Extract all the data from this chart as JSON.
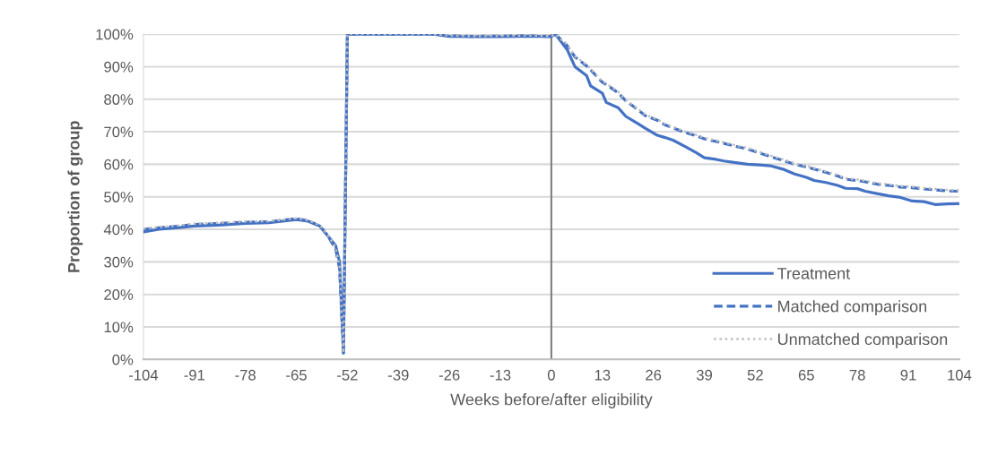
{
  "chart_data": {
    "type": "line",
    "xlabel": "Weeks before/after eligibility",
    "ylabel": "Proportion of group",
    "x": [
      -104,
      -100,
      -95,
      -91,
      -85,
      -78,
      -72,
      -65,
      -62,
      -59,
      -57,
      -55,
      -54,
      -53,
      -52,
      -45,
      -39,
      -30,
      -26,
      -20,
      -13,
      -6,
      0,
      1,
      4,
      6,
      9,
      10,
      13,
      14,
      17,
      19,
      22,
      24,
      27,
      29,
      31,
      34,
      37,
      39,
      42,
      44,
      47,
      50,
      53,
      56,
      59,
      62,
      65,
      67,
      70,
      73,
      75,
      78,
      80,
      83,
      86,
      89,
      92,
      95,
      98,
      101,
      104
    ],
    "series": [
      {
        "name": "Treatment",
        "color": "#4472c4",
        "line_style": "solid",
        "values": [
          39.2,
          40,
          40.5,
          41,
          41.3,
          41.8,
          42,
          43,
          42.5,
          41,
          38,
          35,
          30,
          2,
          100,
          100,
          100,
          100,
          99.3,
          99.2,
          99.2,
          99.4,
          99.2,
          100,
          95.3,
          90,
          87.2,
          84.1,
          81.8,
          79,
          77.4,
          74.7,
          72.5,
          71,
          68.9,
          68.2,
          67.4,
          65.5,
          63.5,
          62,
          61.5,
          61,
          60.5,
          60,
          59.8,
          59.5,
          58.5,
          57,
          56,
          55,
          54.4,
          53.5,
          52.6,
          52.5,
          51.7,
          51,
          50.3,
          49.8,
          48.7,
          48.5,
          47.6,
          47.8,
          47.9
        ]
      },
      {
        "name": "Matched comparison",
        "color": "#4472c4",
        "line_style": "dashed",
        "values": [
          40,
          40.5,
          41,
          41.5,
          41.8,
          42.2,
          42.3,
          43.3,
          42.6,
          41,
          38,
          34,
          28,
          2,
          100,
          100,
          100,
          100,
          99.5,
          99.3,
          99.4,
          99.5,
          99.3,
          100,
          96.5,
          93,
          90.2,
          89,
          85.2,
          84.5,
          82,
          79.5,
          76.8,
          74.9,
          73.5,
          72.1,
          71.2,
          69.8,
          68.7,
          67.8,
          67,
          66.4,
          65.5,
          64.7,
          63.5,
          62.3,
          61.2,
          60,
          59.2,
          58.5,
          57.5,
          56.4,
          55.4,
          55,
          54.6,
          53.9,
          53.5,
          53,
          52.8,
          52.4,
          52.1,
          51.8,
          51.7
        ]
      },
      {
        "name": "Unmatched comparison",
        "color": "#bfbfbf",
        "line_style": "dotted",
        "values": [
          40.2,
          40.7,
          41.2,
          41.7,
          42,
          42.4,
          42.5,
          43.4,
          42.8,
          41.2,
          38.3,
          34.5,
          28.5,
          2,
          100,
          100,
          100,
          100,
          99.6,
          99.4,
          99.5,
          99.6,
          99.4,
          100,
          96.8,
          93.3,
          90.5,
          89.3,
          85.5,
          84.8,
          82.3,
          79.8,
          77.1,
          75.2,
          73.8,
          72.4,
          71.5,
          70.1,
          69,
          68.1,
          67.3,
          66.7,
          65.8,
          65,
          63.8,
          62.6,
          61.5,
          60.3,
          59.5,
          58.8,
          57.8,
          56.7,
          55.7,
          55.3,
          54.9,
          54.2,
          53.8,
          53.3,
          53.1,
          52.7,
          52.4,
          52.1,
          52
        ]
      }
    ],
    "xlim": [
      -104,
      104
    ],
    "xticks": [
      -104,
      -91,
      -78,
      -65,
      -52,
      -39,
      -26,
      -13,
      0,
      13,
      26,
      39,
      52,
      65,
      78,
      91,
      104
    ],
    "ylim": [
      0,
      100
    ],
    "yticks": [
      {
        "value": 0,
        "label": "0%"
      },
      {
        "value": 10,
        "label": "10%"
      },
      {
        "value": 20,
        "label": "20%"
      },
      {
        "value": 30,
        "label": "30%"
      },
      {
        "value": 40,
        "label": "40%"
      },
      {
        "value": 50,
        "label": "50%"
      },
      {
        "value": 60,
        "label": "60%"
      },
      {
        "value": 70,
        "label": "70%"
      },
      {
        "value": 80,
        "label": "80%"
      },
      {
        "value": 90,
        "label": "90%"
      },
      {
        "value": 100,
        "label": "100%"
      }
    ],
    "ref_lines": [
      {
        "axis": "x",
        "value": 0,
        "label": null,
        "color": "#7f7f7f",
        "line_style": "solid"
      }
    ],
    "grid": "y",
    "legend": "bottom right",
    "marker": "none"
  }
}
